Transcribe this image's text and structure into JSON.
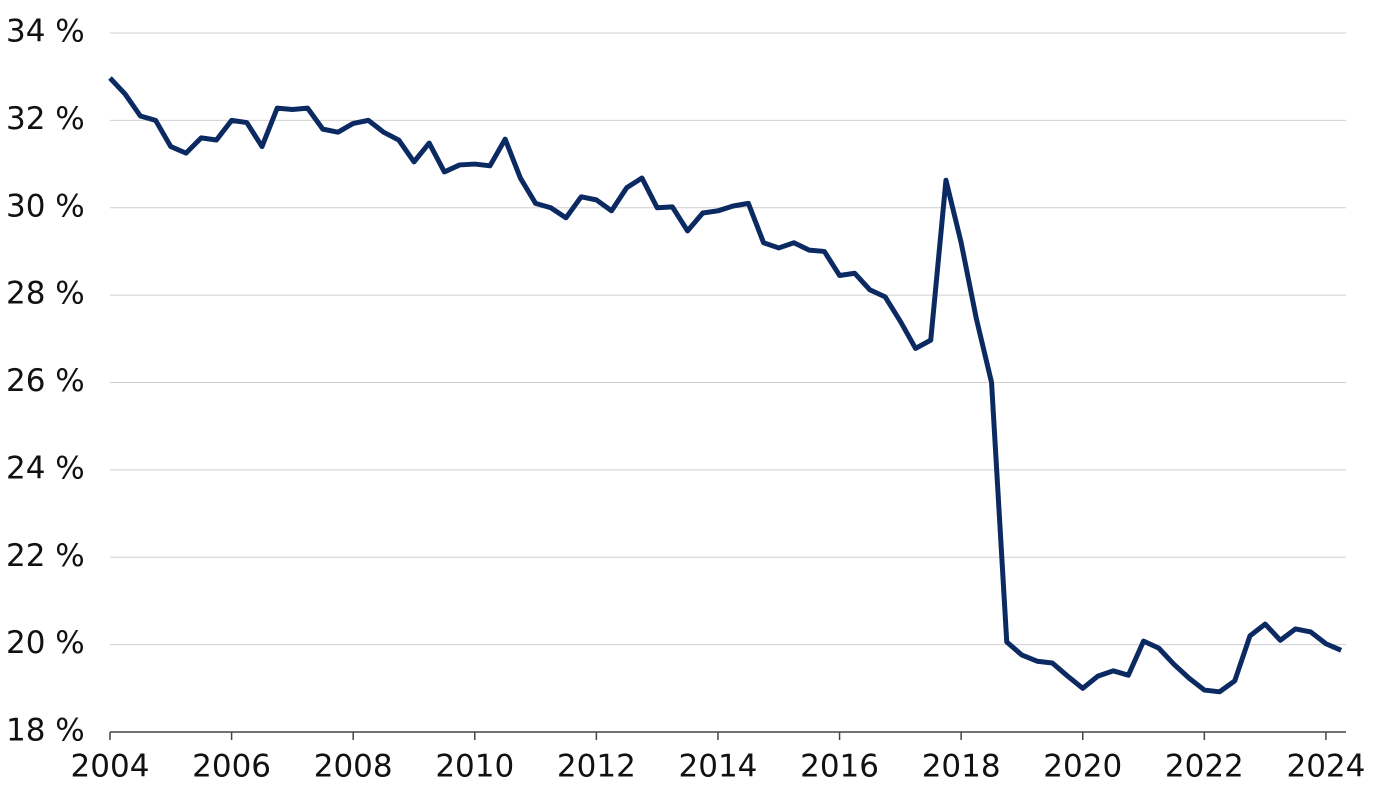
{
  "chart_data": {
    "type": "line",
    "x": [
      2004,
      2004.25,
      2004.5,
      2004.75,
      2005,
      2005.25,
      2005.5,
      2005.75,
      2006,
      2006.25,
      2006.5,
      2006.75,
      2007,
      2007.25,
      2007.5,
      2007.75,
      2008,
      2008.25,
      2008.5,
      2008.75,
      2009,
      2009.25,
      2009.5,
      2009.75,
      2010,
      2010.25,
      2010.5,
      2010.75,
      2011,
      2011.25,
      2011.5,
      2011.75,
      2012,
      2012.25,
      2012.5,
      2012.75,
      2013,
      2013.25,
      2013.5,
      2013.75,
      2014,
      2014.25,
      2014.5,
      2014.75,
      2015,
      2015.25,
      2015.5,
      2015.75,
      2016,
      2016.25,
      2016.5,
      2016.75,
      2017,
      2017.25,
      2017.5,
      2017.75,
      2018,
      2018.25,
      2018.5,
      2018.75,
      2019,
      2019.25,
      2019.5,
      2019.75,
      2020,
      2020.25,
      2020.5,
      2020.75,
      2021,
      2021.25,
      2021.5,
      2021.75,
      2022,
      2022.25,
      2022.5,
      2022.75,
      2023,
      2023.25,
      2023.5,
      2023.75,
      2024,
      2024.25
    ],
    "series": [
      {
        "color": "#0c2a62",
        "values": [
          32.97,
          32.6,
          32.1,
          32.0,
          31.4,
          31.25,
          31.6,
          31.55,
          32.0,
          31.95,
          31.4,
          32.28,
          32.25,
          32.28,
          31.8,
          31.73,
          31.93,
          32.0,
          31.73,
          31.55,
          31.05,
          31.48,
          30.82,
          30.98,
          31.0,
          30.96,
          31.57,
          30.68,
          30.1,
          30.0,
          29.77,
          30.25,
          30.18,
          29.93,
          30.46,
          30.68,
          30.0,
          30.02,
          29.47,
          29.88,
          29.93,
          30.04,
          30.1,
          29.2,
          29.08,
          29.2,
          29.03,
          29.0,
          28.45,
          28.5,
          28.12,
          27.96,
          27.4,
          26.78,
          26.97,
          30.63,
          29.2,
          27.46,
          26.0,
          20.06,
          19.76,
          19.62,
          19.58,
          19.28,
          19.0,
          19.28,
          19.4,
          19.3,
          20.08,
          19.92,
          19.55,
          19.23,
          18.96,
          18.92,
          19.17,
          20.2,
          20.47,
          20.1,
          20.36,
          20.29,
          20.02,
          19.87
        ]
      }
    ],
    "xlim": [
      2004,
      2024.33
    ],
    "xticks": [
      2004,
      2006,
      2008,
      2010,
      2012,
      2014,
      2016,
      2018,
      2020,
      2022,
      2024
    ],
    "ylim": [
      18,
      34
    ],
    "yticks": [
      {
        "value": 18,
        "label": "18 %"
      },
      {
        "value": 20,
        "label": "20 %"
      },
      {
        "value": 22,
        "label": "22 %"
      },
      {
        "value": 24,
        "label": "24 %"
      },
      {
        "value": 26,
        "label": "26 %"
      },
      {
        "value": 28,
        "label": "28 %"
      },
      {
        "value": 30,
        "label": "30 %"
      },
      {
        "value": 32,
        "label": "32 %"
      },
      {
        "value": 34,
        "label": "34 %"
      }
    ],
    "grid": true
  }
}
